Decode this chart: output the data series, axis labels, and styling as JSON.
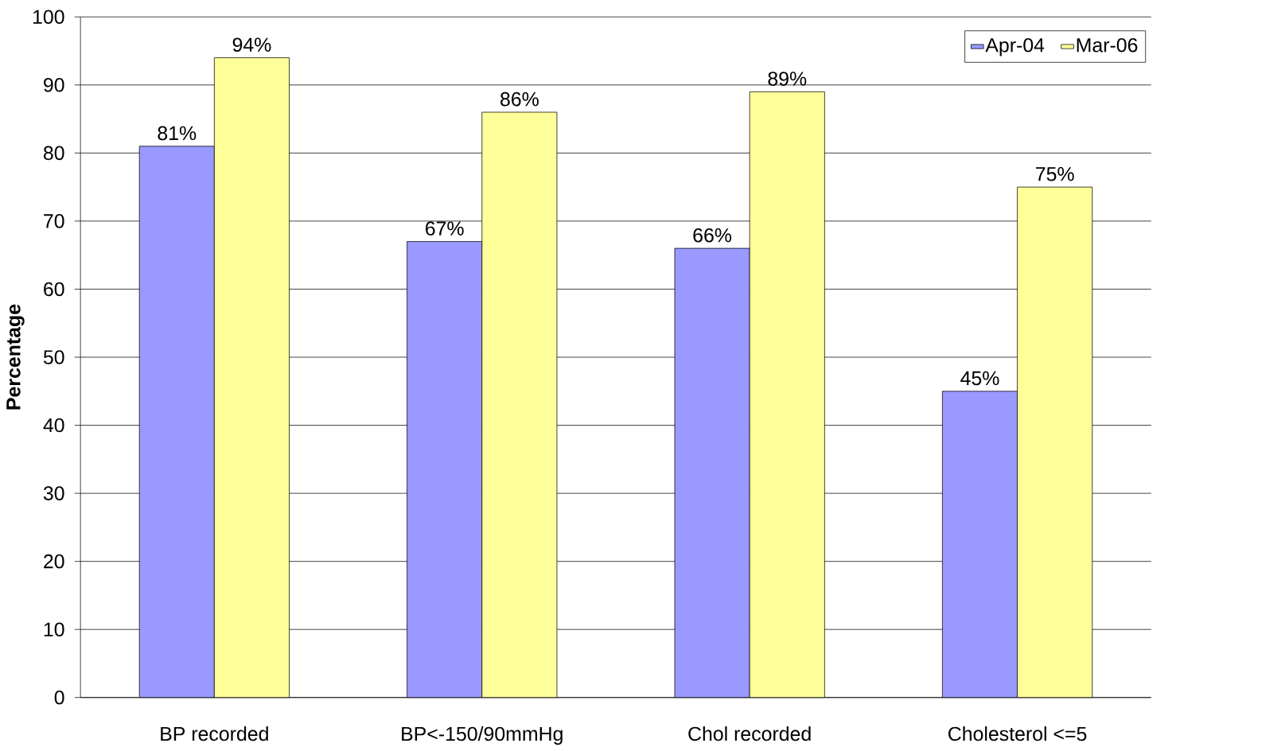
{
  "chart_data": {
    "type": "bar",
    "ylabel": "Percentage",
    "categories": [
      "BP recorded",
      "BP<-150/90mmHg",
      "Chol recorded",
      "Cholesterol <=5"
    ],
    "series": [
      {
        "name": "Apr-04",
        "color": "#9999ff",
        "values": [
          81,
          67,
          66,
          45
        ],
        "value_labels": [
          "81%",
          "67%",
          "66%",
          "45%"
        ]
      },
      {
        "name": "Mar-06",
        "color": "#ffff99",
        "values": [
          94,
          86,
          89,
          75
        ],
        "value_labels": [
          "94%",
          "86%",
          "89%",
          "75%"
        ]
      }
    ],
    "ylim": [
      0,
      100
    ],
    "yticks": [
      0,
      10,
      20,
      30,
      40,
      50,
      60,
      70,
      80,
      90,
      100
    ],
    "grid": "y",
    "legend": "top right"
  }
}
